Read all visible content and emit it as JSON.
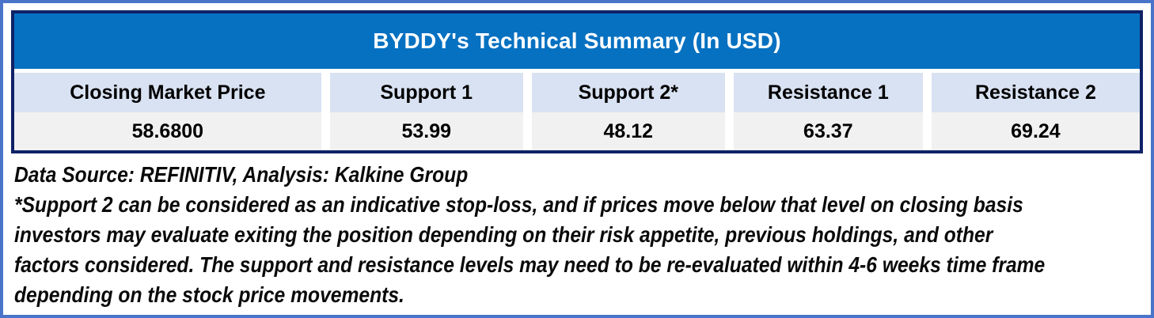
{
  "chart_data": {
    "type": "table",
    "title": "BYDDY's Technical Summary (In USD)",
    "columns": [
      "Closing Market Price",
      "Support 1",
      "Support 2*",
      "Resistance 1",
      "Resistance 2"
    ],
    "values": [
      "58.6800",
      "53.99",
      "48.12",
      "63.37",
      "69.24"
    ]
  },
  "footnote": {
    "source_line": "Data Source: REFINITIV, Analysis: Kalkine Group",
    "lines": [
      "*Support 2 can be considered as an indicative stop-loss, and if prices move below that level on closing basis",
      "investors may evaluate exiting the position depending on their risk appetite, previous holdings, and other",
      "factors considered. The support and resistance levels may need to be re-evaluated within 4-6 weeks time frame",
      "depending on the stock price movements."
    ]
  },
  "colors": {
    "outer_border": "#4a74c9",
    "table_border": "#0f2167",
    "title_bg": "#0771c1",
    "title_text": "#ffffff",
    "header_bg": "#d9e2f2",
    "value_bg": "#f1f1f1",
    "text": "#000000"
  }
}
